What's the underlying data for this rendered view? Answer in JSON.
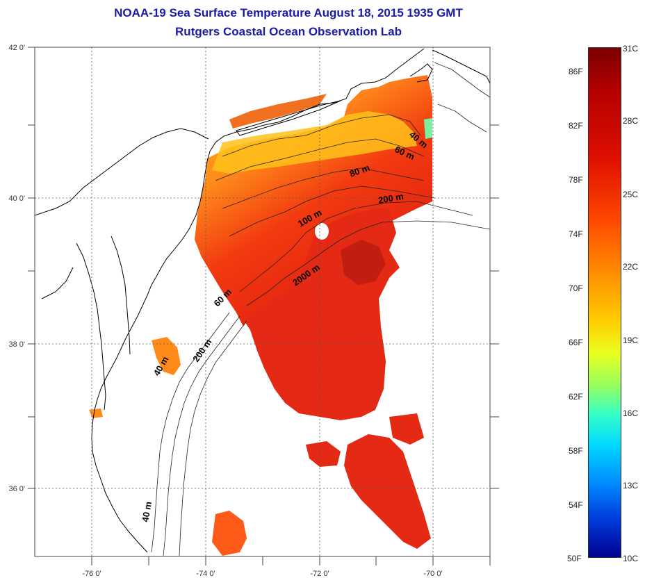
{
  "header": {
    "title": "NOAA-19 Sea Surface Temperature August 18, 2015 1935 GMT",
    "subtitle": "Rutgers Coastal Ocean Observation Lab"
  },
  "map": {
    "lon_labels": [
      "-76 0'",
      "-74 0'",
      "-72 0'",
      "-70 0'"
    ],
    "lat_labels": [
      "42 0'",
      "40 0'",
      "38 0'",
      "36 0'"
    ],
    "contour_labels": [
      "40 m",
      "60 m",
      "80 m",
      "200 m",
      "100 m",
      "2000 m",
      "60 m",
      "200 m",
      "40 m",
      "40 m"
    ]
  },
  "colorbar": {
    "fahrenheit": [
      "86F",
      "82F",
      "78F",
      "74F",
      "70F",
      "66F",
      "62F",
      "58F",
      "54F",
      "50F"
    ],
    "celsius": [
      "31C",
      "28C",
      "25C",
      "22C",
      "19C",
      "16C",
      "13C",
      "10C"
    ],
    "colors": {
      "hot": "#8b0000",
      "warm": "#ff6a00",
      "mid": "#ffd800",
      "cool": "#00e0ff",
      "cold": "#000090"
    }
  }
}
